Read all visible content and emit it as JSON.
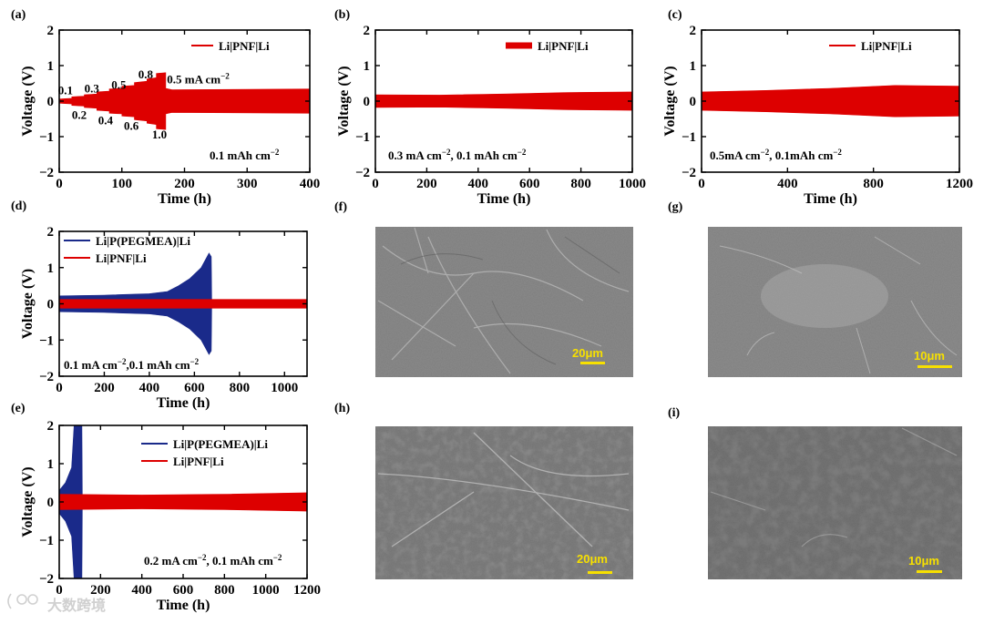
{
  "watermark": "大数跨境",
  "chart_data": [
    {
      "id": "a",
      "panel_label": "(a)",
      "type": "line",
      "xlabel": "Time (h)",
      "ylabel": "Voltage (V)",
      "xlim": [
        0,
        400
      ],
      "ylim": [
        -2,
        2
      ],
      "xticks": [
        0,
        100,
        200,
        300,
        400
      ],
      "yticks": [
        -2,
        -1,
        0,
        1,
        2
      ],
      "ytick_labels": [
        "−2",
        "−1",
        "0",
        "1",
        "2"
      ],
      "legend": [
        "Li|PNF|Li"
      ],
      "legend_position": "top-right",
      "note": "0.1 mAh cm",
      "note_sup": "−2",
      "series": [
        {
          "name": "Li|PNF|Li",
          "color": "#dd0000",
          "envelope": [
            [
              0,
              0.06
            ],
            [
              20,
              0.08
            ],
            [
              20,
              0.12
            ],
            [
              40,
              0.14
            ],
            [
              40,
              0.18
            ],
            [
              60,
              0.2
            ],
            [
              60,
              0.26
            ],
            [
              80,
              0.28
            ],
            [
              80,
              0.34
            ],
            [
              100,
              0.36
            ],
            [
              100,
              0.42
            ],
            [
              120,
              0.44
            ],
            [
              120,
              0.52
            ],
            [
              140,
              0.56
            ],
            [
              140,
              0.62
            ],
            [
              155,
              0.66
            ],
            [
              155,
              0.78
            ],
            [
              170,
              0.8
            ],
            [
              170,
              0.36
            ],
            [
              180,
              0.32
            ],
            [
              400,
              0.34
            ]
          ]
        }
      ],
      "rate_labels": [
        {
          "text": "0.1",
          "x": 10,
          "y": 0.3
        },
        {
          "text": "0.2",
          "x": 32,
          "y": -0.4
        },
        {
          "text": "0.3",
          "x": 52,
          "y": 0.35
        },
        {
          "text": "0.4",
          "x": 74,
          "y": -0.55
        },
        {
          "text": "0.5",
          "x": 95,
          "y": 0.45
        },
        {
          "text": "0.6",
          "x": 115,
          "y": -0.7
        },
        {
          "text": "0.8",
          "x": 138,
          "y": 0.75
        },
        {
          "text": "1.0",
          "x": 160,
          "y": -0.95
        },
        {
          "text": "0.5 mA cm",
          "sup": "−2",
          "x": 172,
          "y": 0.6
        }
      ]
    },
    {
      "id": "b",
      "panel_label": "(b)",
      "type": "line",
      "xlabel": "Time (h)",
      "ylabel": "Voltage (V)",
      "xlim": [
        0,
        1000
      ],
      "ylim": [
        -2,
        2
      ],
      "xticks": [
        0,
        200,
        400,
        600,
        800,
        1000
      ],
      "yticks": [
        -2,
        -1,
        0,
        1,
        2
      ],
      "ytick_labels": [
        "−2",
        "−1",
        "0",
        "1",
        "2"
      ],
      "legend": [
        "Li|PNF|Li"
      ],
      "legend_position": "top-right",
      "note": "0.3 mA cm",
      "note_sup": "−2",
      "note2": ", 0.1 mAh cm",
      "note2_sup": "−2",
      "series": [
        {
          "name": "Li|PNF|Li",
          "color": "#dd0000",
          "envelope": [
            [
              0,
              0.18
            ],
            [
              250,
              0.17
            ],
            [
              500,
              0.2
            ],
            [
              750,
              0.24
            ],
            [
              1000,
              0.26
            ]
          ]
        }
      ]
    },
    {
      "id": "c",
      "panel_label": "(c)",
      "type": "line",
      "xlabel": "Time (h)",
      "ylabel": "Voltage (V)",
      "xlim": [
        0,
        1200
      ],
      "ylim": [
        -2,
        2
      ],
      "xticks": [
        0,
        400,
        800,
        1200
      ],
      "yticks": [
        -2,
        -1,
        0,
        1,
        2
      ],
      "ytick_labels": [
        "−2",
        "−1",
        "0",
        "1",
        "2"
      ],
      "legend": [
        "Li|PNF|Li"
      ],
      "legend_position": "top-right",
      "note": "0.5mA cm",
      "note_sup": "−2",
      "note2": ", 0.1mAh cm",
      "note2_sup": "−2",
      "series": [
        {
          "name": "Li|PNF|Li",
          "color": "#dd0000",
          "envelope": [
            [
              0,
              0.26
            ],
            [
              300,
              0.3
            ],
            [
              600,
              0.36
            ],
            [
              900,
              0.44
            ],
            [
              1200,
              0.42
            ]
          ]
        }
      ]
    },
    {
      "id": "d",
      "panel_label": "(d)",
      "type": "line",
      "xlabel": "Time (h)",
      "ylabel": "Voltage (V)",
      "xlim": [
        0,
        1100
      ],
      "ylim": [
        -2,
        2
      ],
      "xticks": [
        0,
        200,
        400,
        600,
        800,
        1000
      ],
      "yticks": [
        -2,
        -1,
        0,
        1,
        2
      ],
      "ytick_labels": [
        "−2",
        "−1",
        "0",
        "1",
        "2"
      ],
      "legend": [
        "Li|P(PEGMEA)|Li",
        "Li|PNF|Li"
      ],
      "legend_position": "top-left",
      "note": "0.1 mA cm",
      "note_sup": "−2",
      "note2": ",0.1 mAh cm",
      "note2_sup": "−2",
      "series": [
        {
          "name": "Li|P(PEGMEA)|Li",
          "color": "#1a2a8a",
          "envelope": [
            [
              0,
              0.22
            ],
            [
              200,
              0.24
            ],
            [
              400,
              0.28
            ],
            [
              480,
              0.34
            ],
            [
              530,
              0.5
            ],
            [
              580,
              0.7
            ],
            [
              630,
              1.0
            ],
            [
              665,
              1.4
            ],
            [
              675,
              1.3
            ],
            [
              677,
              0
            ]
          ]
        },
        {
          "name": "Li|PNF|Li",
          "color": "#dd0000",
          "envelope": [
            [
              0,
              0.12
            ],
            [
              300,
              0.12
            ],
            [
              600,
              0.12
            ],
            [
              1100,
              0.12
            ]
          ]
        }
      ]
    },
    {
      "id": "e",
      "panel_label": "(e)",
      "type": "line",
      "xlabel": "Time (h)",
      "ylabel": "Voltage (V)",
      "xlim": [
        0,
        1200
      ],
      "ylim": [
        -2,
        2
      ],
      "xticks": [
        0,
        200,
        400,
        600,
        800,
        1000,
        1200
      ],
      "yticks": [
        -2,
        -1,
        0,
        1,
        2
      ],
      "ytick_labels": [
        "−2",
        "−1",
        "0",
        "1",
        "2"
      ],
      "legend": [
        "Li|P(PEGMEA)|Li",
        "Li|PNF|Li"
      ],
      "legend_position": "top-right",
      "note": "0.2 mA cm",
      "note_sup": "−2",
      "note2": ", 0.1 mAh cm",
      "note2_sup": "−2",
      "series": [
        {
          "name": "Li|P(PEGMEA)|Li",
          "color": "#1a2a8a",
          "envelope": [
            [
              0,
              0.3
            ],
            [
              30,
              0.5
            ],
            [
              60,
              0.9
            ],
            [
              72,
              2.0
            ],
            [
              110,
              2.0
            ],
            [
              112,
              0
            ]
          ]
        },
        {
          "name": "Li|PNF|Li",
          "color": "#dd0000",
          "envelope": [
            [
              0,
              0.2
            ],
            [
              400,
              0.18
            ],
            [
              800,
              0.2
            ],
            [
              1200,
              0.24
            ]
          ]
        }
      ]
    }
  ],
  "sem_images": [
    {
      "id": "f",
      "panel_label": "(f)",
      "scale_bar": "20μm",
      "variant": "fibrous"
    },
    {
      "id": "g",
      "panel_label": "(g)",
      "scale_bar": "10μm",
      "variant": "smooth"
    },
    {
      "id": "h",
      "panel_label": "(h)",
      "scale_bar": "20μm",
      "variant": "deposits"
    },
    {
      "id": "i",
      "panel_label": "(i)",
      "scale_bar": "10μm",
      "variant": "deposits-dense"
    }
  ]
}
